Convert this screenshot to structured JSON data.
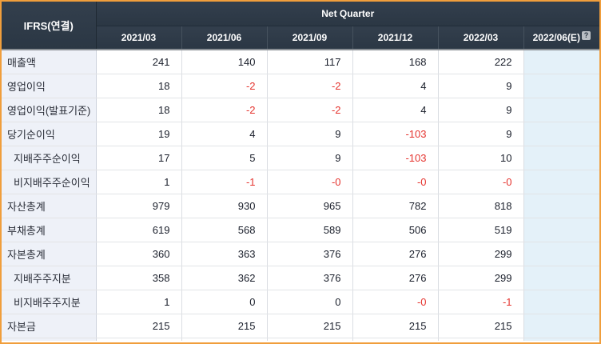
{
  "table": {
    "corner_label": "IFRS(연결)",
    "group_header": "Net Quarter",
    "columns": [
      "2021/03",
      "2021/06",
      "2021/09",
      "2021/12",
      "2022/03",
      "2022/06(E)"
    ],
    "estimate_help_icon": "?",
    "rows": [
      {
        "label": "매출액",
        "indent": false,
        "values": [
          "241",
          "140",
          "117",
          "168",
          "222",
          ""
        ]
      },
      {
        "label": "영업이익",
        "indent": false,
        "values": [
          "18",
          "-2",
          "-2",
          "4",
          "9",
          ""
        ]
      },
      {
        "label": "영업이익(발표기준)",
        "indent": false,
        "values": [
          "18",
          "-2",
          "-2",
          "4",
          "9",
          ""
        ]
      },
      {
        "label": "당기순이익",
        "indent": false,
        "values": [
          "19",
          "4",
          "9",
          "-103",
          "9",
          ""
        ]
      },
      {
        "label": "지배주주순이익",
        "indent": true,
        "values": [
          "17",
          "5",
          "9",
          "-103",
          "10",
          ""
        ]
      },
      {
        "label": "비지배주주순이익",
        "indent": true,
        "values": [
          "1",
          "-1",
          "-0",
          "-0",
          "-0",
          ""
        ]
      },
      {
        "label": "자산총계",
        "indent": false,
        "values": [
          "979",
          "930",
          "965",
          "782",
          "818",
          ""
        ]
      },
      {
        "label": "부채총계",
        "indent": false,
        "values": [
          "619",
          "568",
          "589",
          "506",
          "519",
          ""
        ]
      },
      {
        "label": "자본총계",
        "indent": false,
        "values": [
          "360",
          "363",
          "376",
          "276",
          "299",
          ""
        ]
      },
      {
        "label": "지배주주지분",
        "indent": true,
        "values": [
          "358",
          "362",
          "376",
          "276",
          "299",
          ""
        ]
      },
      {
        "label": "비지배주주지분",
        "indent": true,
        "values": [
          "1",
          "0",
          "0",
          "-0",
          "-1",
          ""
        ]
      },
      {
        "label": "자본금",
        "indent": false,
        "values": [
          "215",
          "215",
          "215",
          "215",
          "215",
          ""
        ]
      }
    ]
  },
  "colors": {
    "frame_border": "#f09e3c",
    "header_bg": "#2e3a47",
    "header_text": "#ffffff",
    "label_column_bg": "#eef1f8",
    "estimate_column_bg": "#e4f1f9",
    "value_text": "#1a1f2b",
    "negative_value_text": "#e5332e"
  }
}
